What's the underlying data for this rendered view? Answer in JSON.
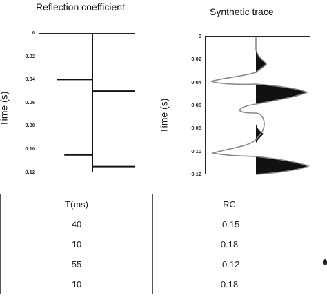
{
  "left_panel": {
    "title": "Reflection coefficient",
    "ylabel": "Time (s)",
    "ticks": [
      "0",
      "0.02",
      "0.04",
      "0.06",
      "0.08",
      "0.10",
      "0.12"
    ]
  },
  "right_panel": {
    "title": "Synthetic trace",
    "ylabel": "Time (s)",
    "ticks": [
      "0",
      "0.02",
      "0.04",
      "0.06",
      "0.08",
      "0.10",
      "0.12"
    ]
  },
  "table": {
    "headers": [
      "T(ms)",
      "RC"
    ],
    "rows": [
      [
        "40",
        "-0.15"
      ],
      [
        "10",
        "0.18"
      ],
      [
        "55",
        "-0.12"
      ],
      [
        "10",
        "0.18"
      ]
    ]
  },
  "chart_data": [
    {
      "type": "line",
      "title": "Reflection coefficient",
      "ylabel": "Time (s)",
      "ylim": [
        0,
        0.12
      ],
      "y_ticks": [
        "0",
        "0.02",
        "0.04",
        "0.06",
        "0.08",
        "0.10",
        "0.12"
      ],
      "series": [
        {
          "values": [
            {
              "time": 0.04,
              "rc": -0.15
            },
            {
              "time": 0.05,
              "rc": 0.18
            },
            {
              "time": 0.105,
              "rc": -0.12
            },
            {
              "time": 0.115,
              "rc": 0.18
            }
          ]
        }
      ]
    },
    {
      "type": "line",
      "title": "Synthetic trace",
      "ylabel": "Time (s)",
      "ylim": [
        0,
        0.12
      ],
      "y_ticks": [
        "0",
        "0.02",
        "0.04",
        "0.06",
        "0.08",
        "0.10",
        "0.12"
      ]
    }
  ]
}
